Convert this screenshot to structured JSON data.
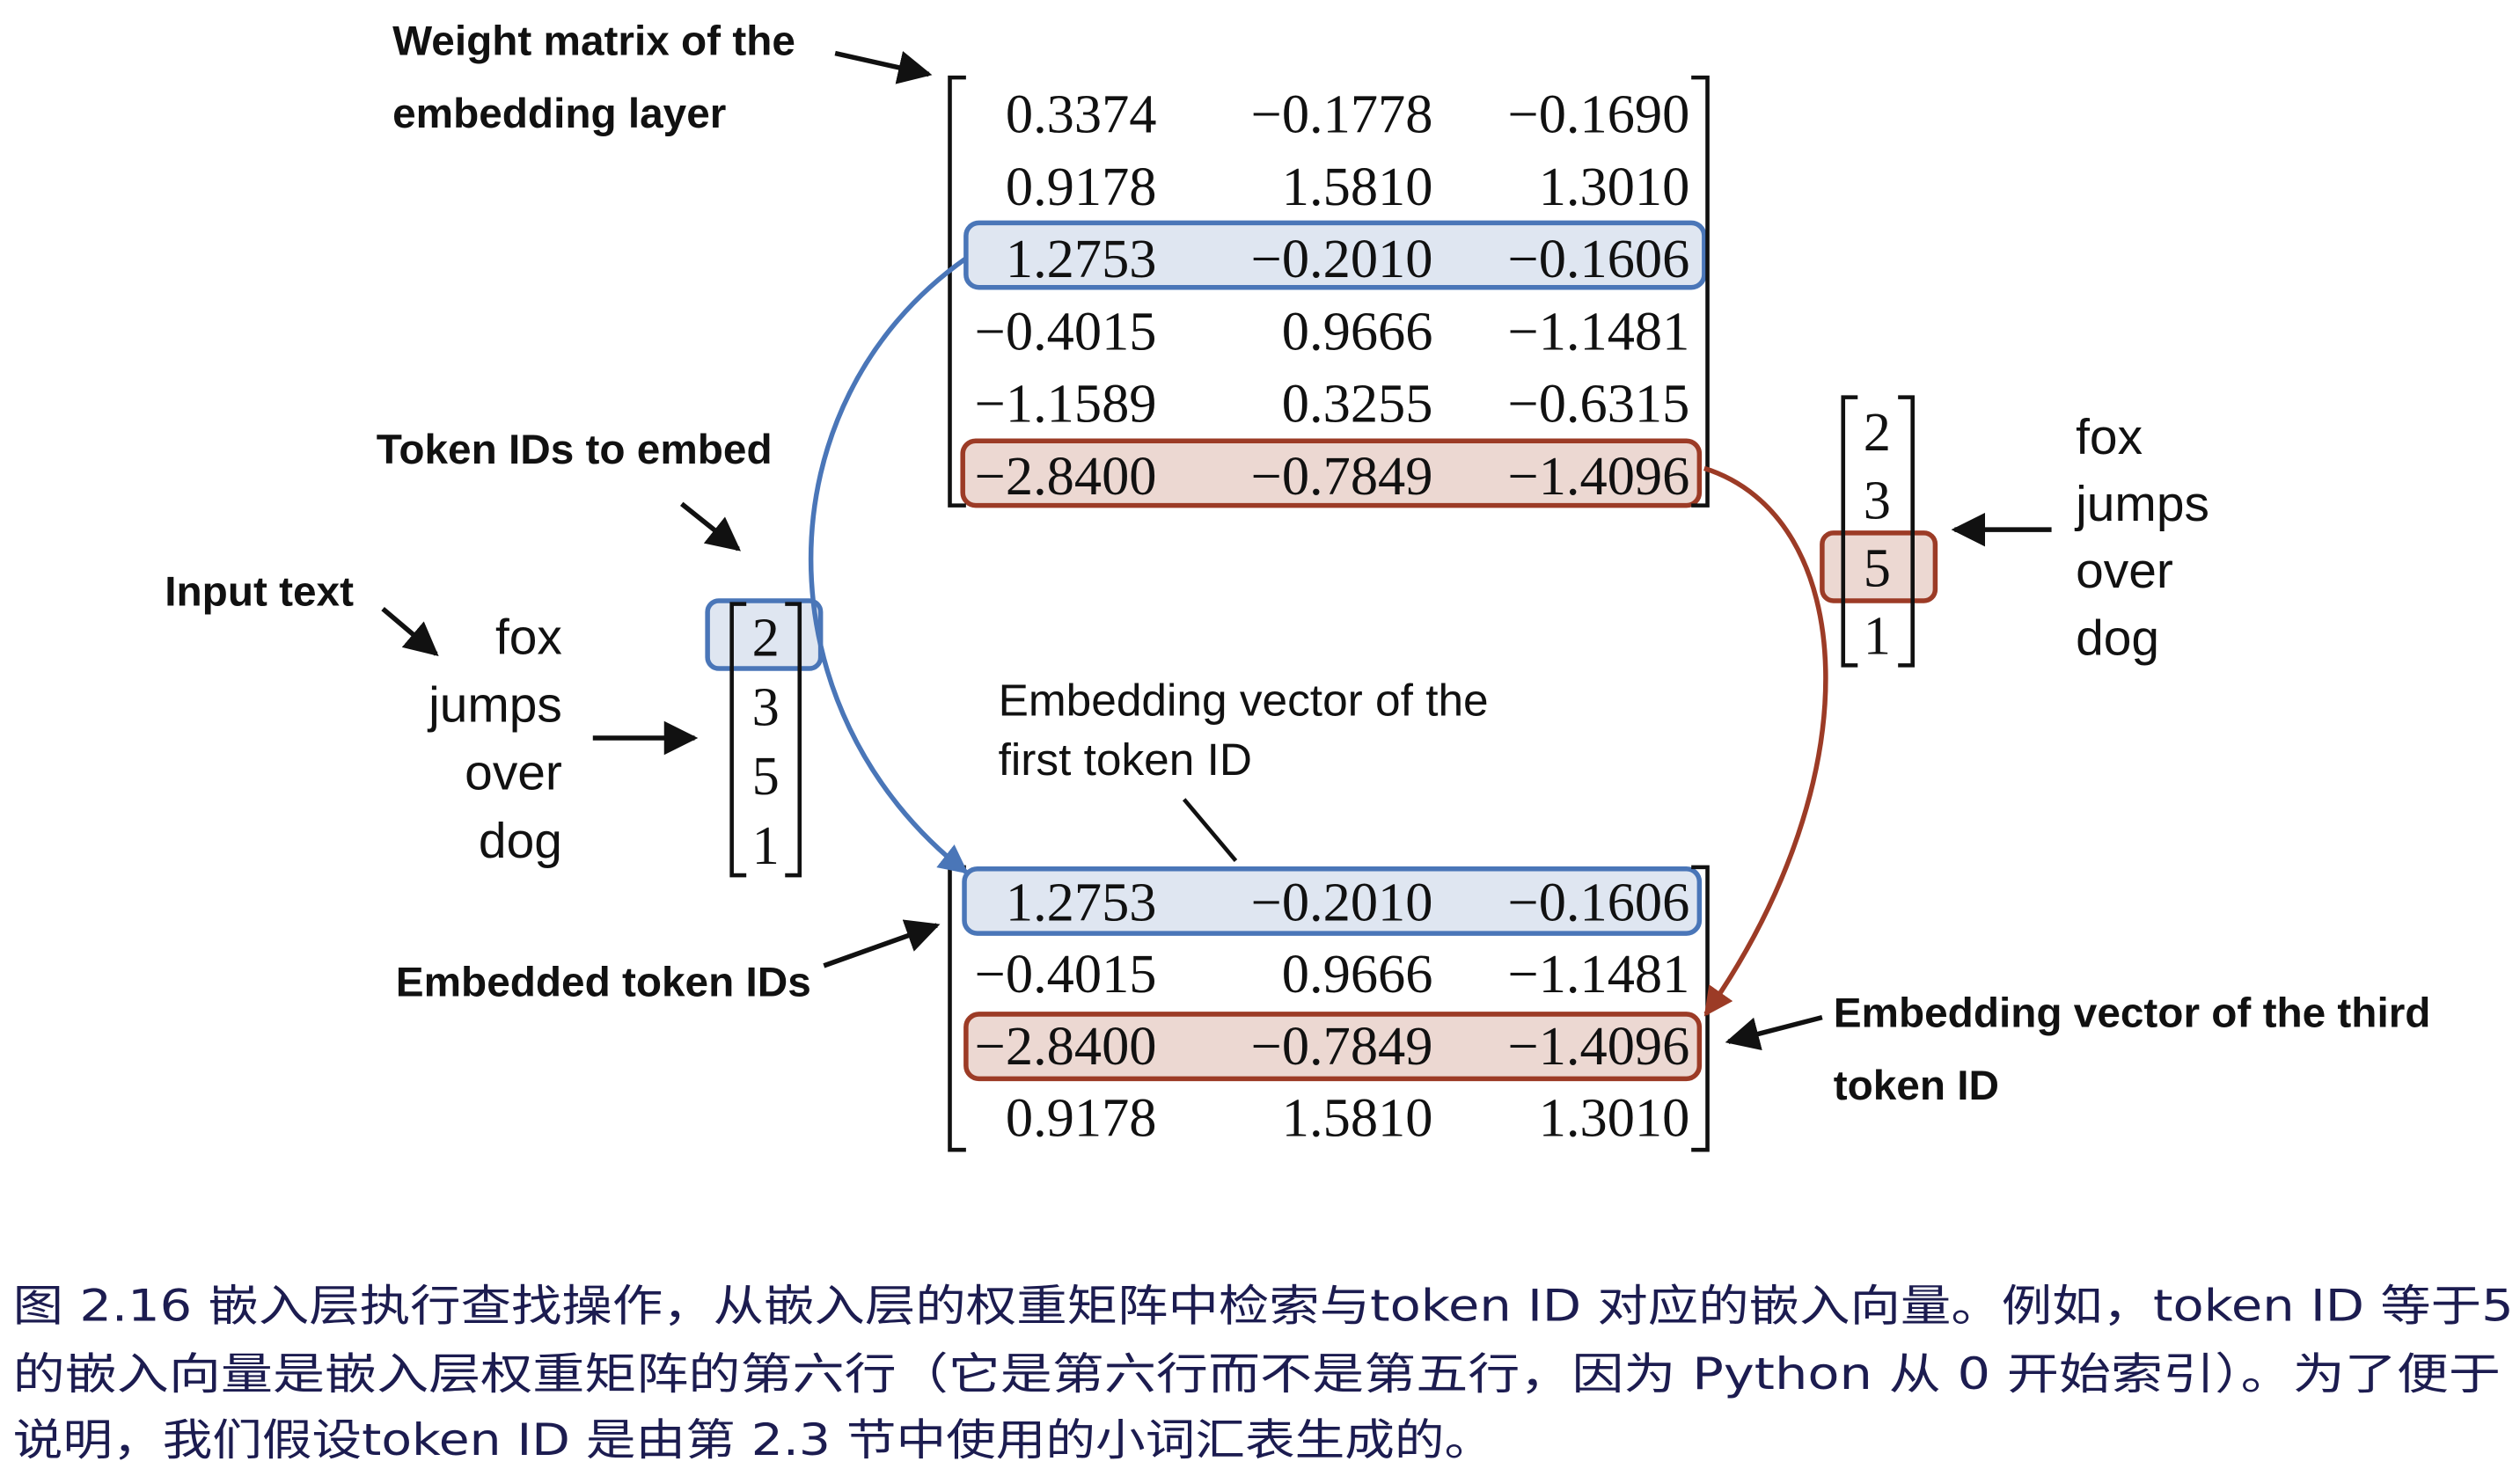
{
  "labels": {
    "weight_matrix_1": "Weight matrix of the",
    "weight_matrix_2": "embedding layer",
    "token_ids": "Token IDs to embed",
    "input_text": "Input text",
    "embedding_first_1": "Embedding vector of the",
    "embedding_first_2": "first token ID",
    "embedded_token_ids": "Embedded token IDs",
    "embedding_third_1": "Embedding vector of the third",
    "embedding_third_2": "token ID"
  },
  "input_words": [
    "fox",
    "jumps",
    "over",
    "dog"
  ],
  "token_ids": [
    "2",
    "3",
    "5",
    "1"
  ],
  "weight_matrix": [
    [
      "0.3374",
      "−0.1778",
      "−0.1690"
    ],
    [
      "0.9178",
      "1.5810",
      "1.3010"
    ],
    [
      "1.2753",
      "−0.2010",
      "−0.1606"
    ],
    [
      "−0.4015",
      "0.9666",
      "−1.1481"
    ],
    [
      "−1.1589",
      "0.3255",
      "−0.6315"
    ],
    [
      "−2.8400",
      "−0.7849",
      "−1.4096"
    ]
  ],
  "embedded_matrix": [
    [
      "1.2753",
      "−0.2010",
      "−0.1606"
    ],
    [
      "−0.4015",
      "0.9666",
      "−1.1481"
    ],
    [
      "−2.8400",
      "−0.7849",
      "−1.4096"
    ],
    [
      "0.9178",
      "1.5810",
      "1.3010"
    ]
  ],
  "colors": {
    "blue_highlight": "#4a76b8",
    "blue_fill": "#dfe6f1",
    "red_highlight": "#9c3b26",
    "red_fill": "#ecd8d2",
    "caption_text": "#1c1c50"
  },
  "caption": {
    "line1": "图 2.16 嵌入层执行查找操作，从嵌入层的权重矩阵中检索与token ID 对应的嵌入向量。例如，token ID 等于5",
    "line2": "的嵌入向量是嵌入层权重矩阵的第六行（它是第六行而不是第五行，因为 Python 从 0 开始索引）。为了便于",
    "line3": "说明，我们假设token ID 是由第 2.3 节中使用的小词汇表生成的。"
  }
}
